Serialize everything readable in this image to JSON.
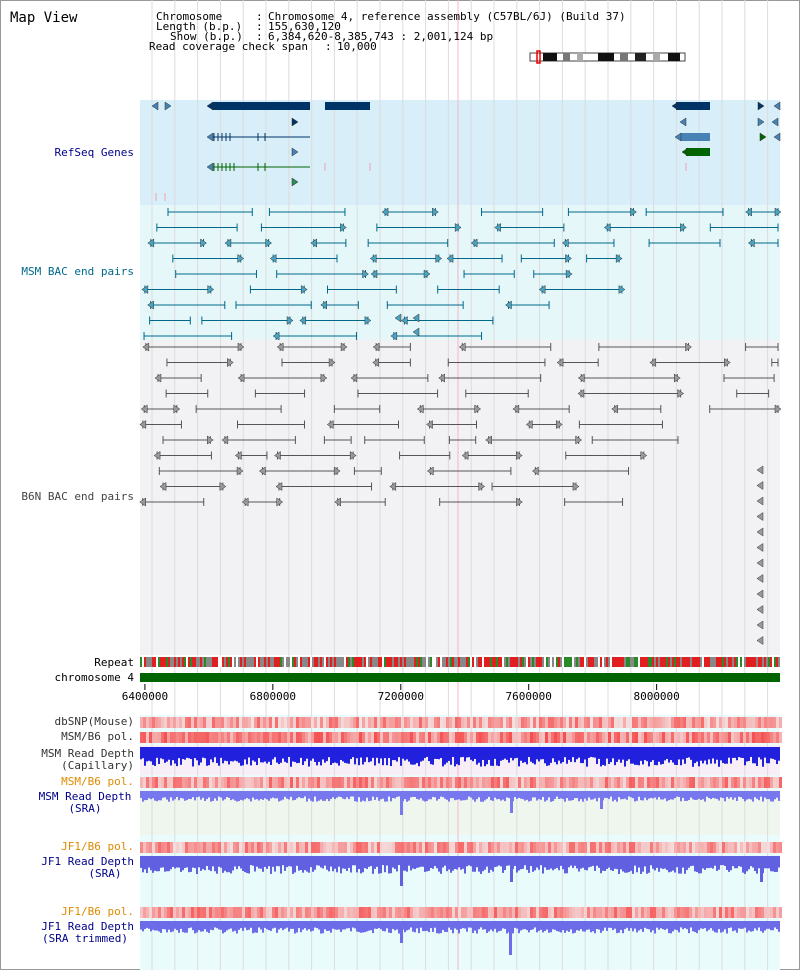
{
  "page": {
    "title": "Map View"
  },
  "info": {
    "chromosome_label": "Chromosome",
    "chromosome_value": "Chromosome 4, reference assembly (C57BL/6J) (Build 37)",
    "length_label": "Length (b.p.)",
    "length_value": "155,630,120",
    "show_label": "Show (b.p.)",
    "show_value": "6,384,620-8,385,743 : 2,001,124 bp",
    "span_label": "Read coverage check span",
    "span_value": "10,000"
  },
  "tracks": {
    "refseq": "RefSeq Genes",
    "msm_bac": "MSM BAC end pairs",
    "b6n_bac": "B6N BAC end pairs",
    "repeat": "Repeat",
    "chromosome": "chromosome 4",
    "dbsnp": "dbSNP(Mouse)",
    "msm_pol1": "MSM/B6 pol.",
    "msm_depth_cap1": "MSM Read Depth",
    "msm_depth_cap2": "(Capillary)",
    "msm_pol2": "MSM/B6 pol.",
    "msm_depth_sra1": "MSM Read Depth",
    "msm_depth_sra2": "(SRA)",
    "jf1_pol1": "JF1/B6 pol.",
    "jf1_depth1": "JF1 Read Depth",
    "jf1_depth2": "(SRA)",
    "jf1_pol2": "JF1/B6 pol.",
    "jf1_trim1": "JF1 Read Depth",
    "jf1_trim2": "(SRA trimmed)"
  },
  "axis": {
    "ticks": [
      "6400000",
      "6800000",
      "7200000",
      "7600000",
      "8000000"
    ],
    "tick_values": [
      6400000,
      6800000,
      7200000,
      7600000,
      8000000
    ],
    "start": 6384620,
    "end": 8385743
  },
  "colors": {
    "refseq_label": "#00008b",
    "msm_label": "#00688b",
    "b6n_label": "#444444",
    "orange_label": "#e08a00",
    "blue_label": "#00008b",
    "gene_dark": "#003366",
    "gene_mid": "#4682b4",
    "gene_green": "#006400",
    "chrom_green": "#006400"
  }
}
